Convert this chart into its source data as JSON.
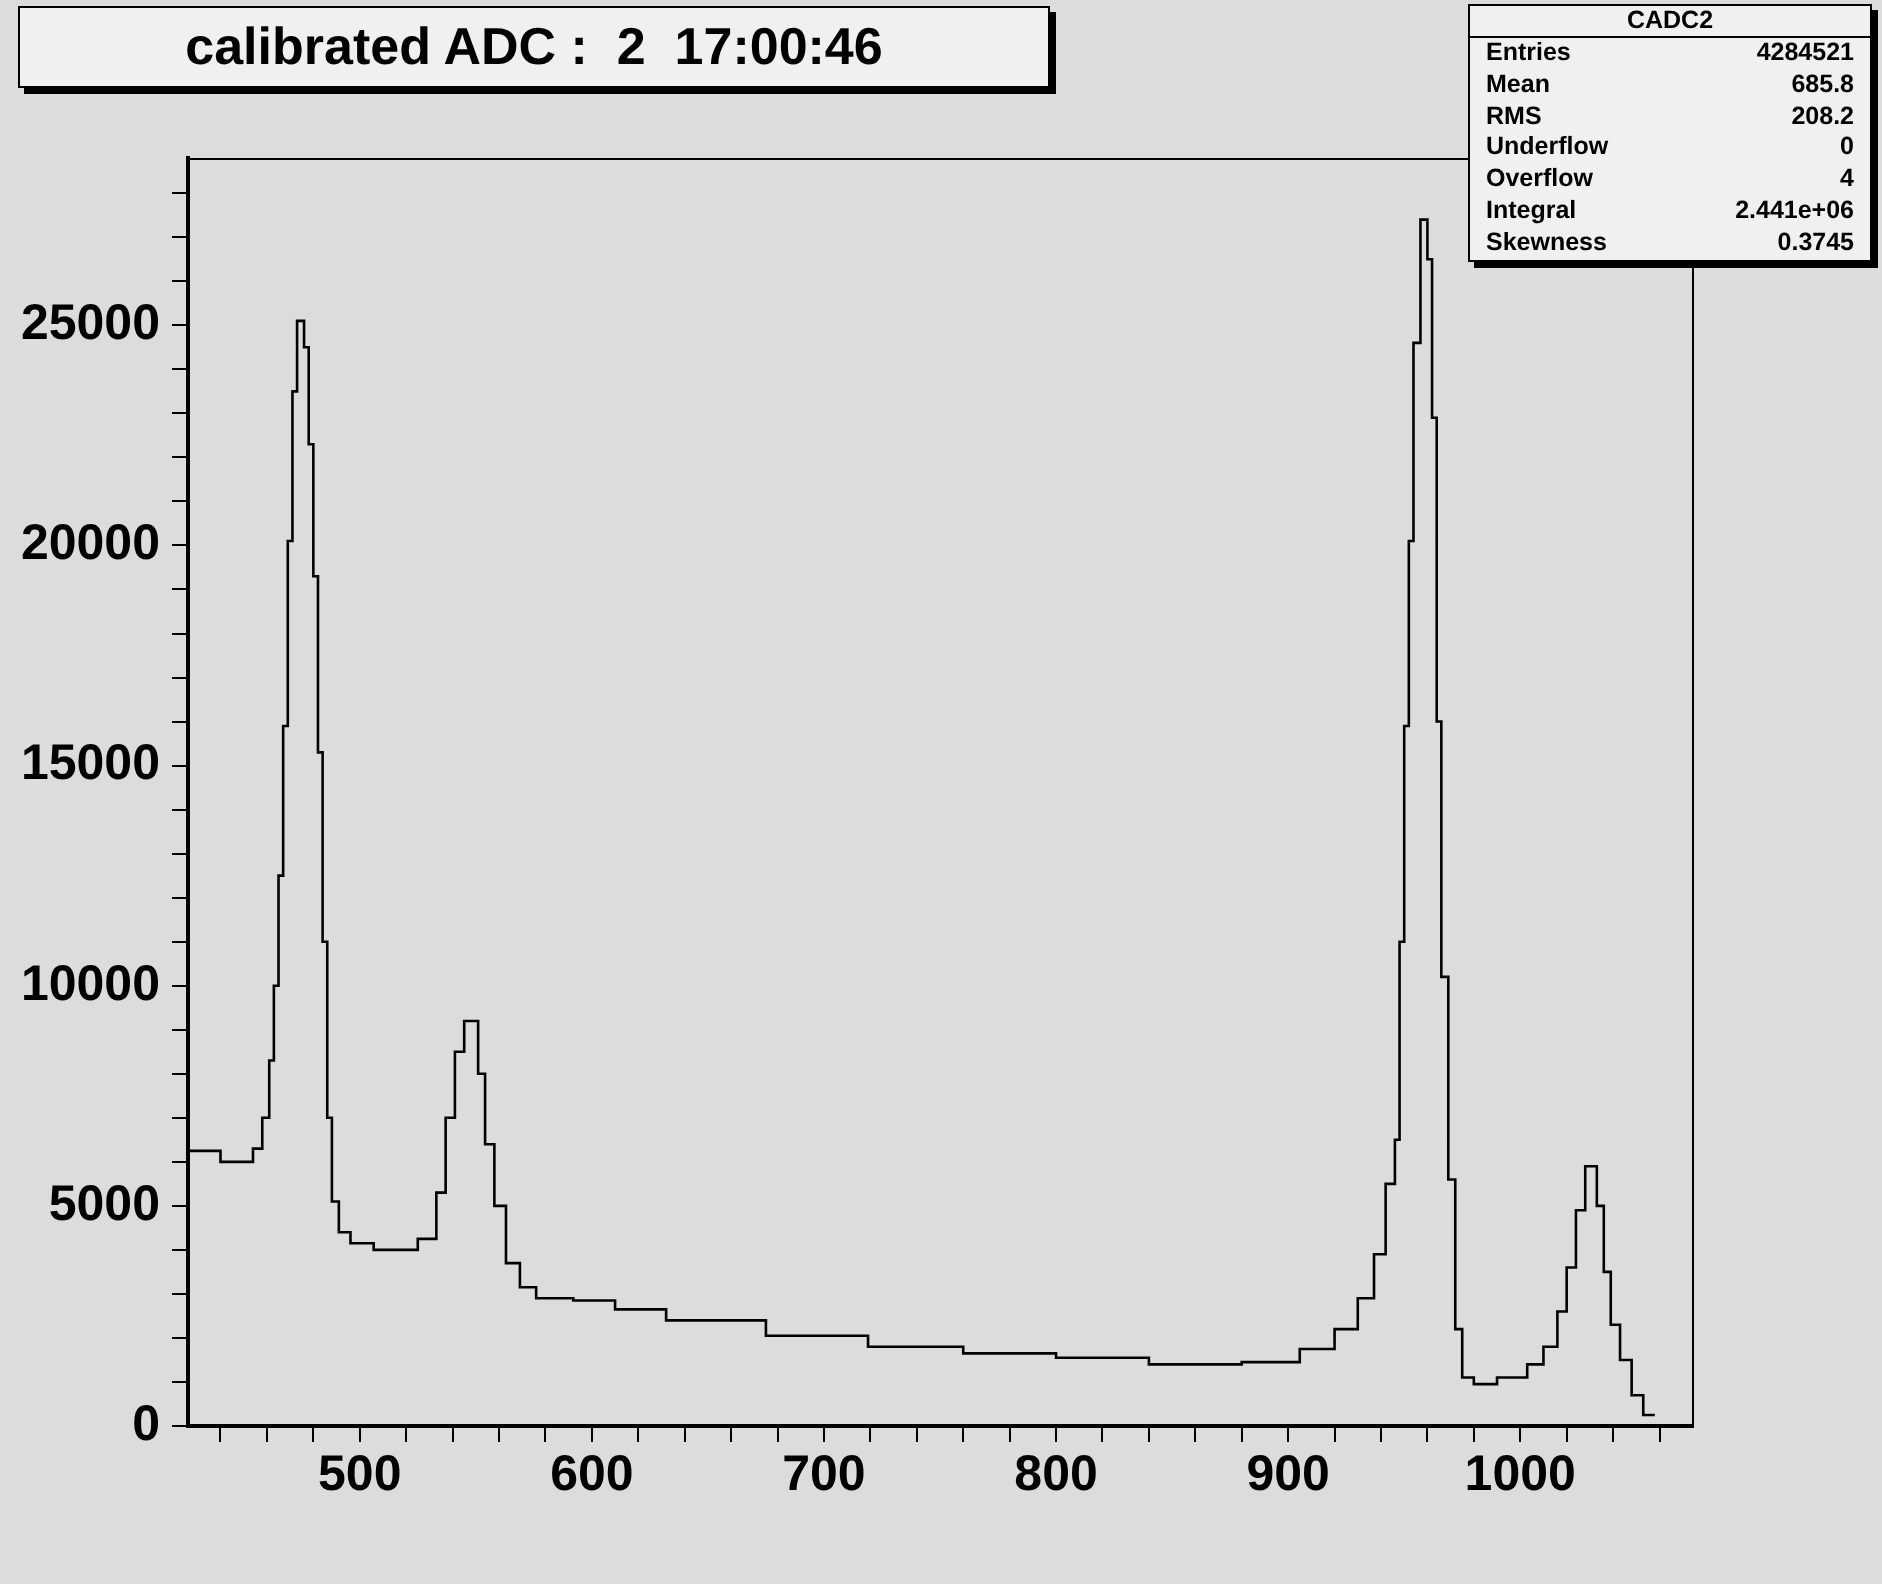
{
  "chart_data": {
    "type": "histogram",
    "title": "calibrated ADC :  2  17:00:46",
    "annotations": [
      "CADC2",
      "Entries",
      "4284521",
      "Mean",
      "685.8",
      "RMS",
      "208.2",
      "Underflow",
      "0",
      "Overflow",
      "4",
      "Integral",
      "2.441e+06",
      "Skewness",
      "0.3745"
    ],
    "bins": [
      426,
      440,
      454,
      458,
      461,
      463,
      465,
      467,
      469,
      471,
      473,
      476,
      478,
      480,
      482,
      484,
      486,
      488,
      491,
      496,
      506,
      525,
      533,
      537,
      541,
      545,
      551,
      554,
      558,
      563,
      569,
      576,
      592,
      610,
      632,
      675,
      719,
      760,
      800,
      840,
      880,
      905,
      920,
      930,
      937,
      942,
      946,
      948,
      950,
      952,
      954,
      957,
      960,
      962,
      964,
      966,
      969,
      972,
      975,
      980,
      990,
      1003,
      1010,
      1016,
      1020,
      1024,
      1028,
      1033,
      1036,
      1039,
      1043,
      1048,
      1053,
      1058
    ],
    "values": [
      6250,
      6000,
      6300,
      7000,
      8300,
      10000,
      12500,
      15900,
      20100,
      23500,
      25100,
      24500,
      22300,
      19300,
      15300,
      11000,
      7000,
      5100,
      4400,
      4150,
      4000,
      4250,
      5300,
      7000,
      8500,
      9200,
      8000,
      6400,
      5000,
      3700,
      3150,
      2900,
      2850,
      2650,
      2400,
      2050,
      1800,
      1650,
      1550,
      1400,
      1450,
      1750,
      2200,
      2900,
      3900,
      5500,
      6500,
      11000,
      15900,
      20100,
      24600,
      27400,
      26500,
      22900,
      16000,
      10200,
      5600,
      2200,
      1100,
      950,
      1100,
      1400,
      1800,
      2600,
      3600,
      4900,
      5900,
      5000,
      3500,
      2300,
      1500,
      700,
      250
    ],
    "color": "#000000",
    "xlim": [
      426,
      1074
    ],
    "xticks": [
      {
        "value": 440,
        "label": null
      },
      {
        "value": 460,
        "label": null
      },
      {
        "value": 480,
        "label": null
      },
      500,
      {
        "value": 520,
        "label": null
      },
      {
        "value": 540,
        "label": null
      },
      {
        "value": 560,
        "label": null
      },
      {
        "value": 580,
        "label": null
      },
      600,
      {
        "value": 620,
        "label": null
      },
      {
        "value": 640,
        "label": null
      },
      {
        "value": 660,
        "label": null
      },
      {
        "value": 680,
        "label": null
      },
      700,
      {
        "value": 720,
        "label": null
      },
      {
        "value": 740,
        "label": null
      },
      {
        "value": 760,
        "label": null
      },
      {
        "value": 780,
        "label": null
      },
      800,
      {
        "value": 820,
        "label": null
      },
      {
        "value": 840,
        "label": null
      },
      {
        "value": 860,
        "label": null
      },
      {
        "value": 880,
        "label": null
      },
      900,
      {
        "value": 920,
        "label": null
      },
      {
        "value": 940,
        "label": null
      },
      {
        "value": 960,
        "label": null
      },
      {
        "value": 980,
        "label": null
      },
      1000,
      {
        "value": 1020,
        "label": null
      },
      {
        "value": 1040,
        "label": null
      },
      {
        "value": 1060,
        "label": null
      }
    ],
    "ylim": [
      0,
      28800
    ],
    "yticks": [
      0,
      {
        "value": 1000,
        "label": null
      },
      {
        "value": 2000,
        "label": null
      },
      {
        "value": 3000,
        "label": null
      },
      {
        "value": 4000,
        "label": null
      },
      5000,
      {
        "value": 6000,
        "label": null
      },
      {
        "value": 7000,
        "label": null
      },
      {
        "value": 8000,
        "label": null
      },
      {
        "value": 9000,
        "label": null
      },
      10000,
      {
        "value": 11000,
        "label": null
      },
      {
        "value": 12000,
        "label": null
      },
      {
        "value": 13000,
        "label": null
      },
      {
        "value": 14000,
        "label": null
      },
      15000,
      {
        "value": 16000,
        "label": null
      },
      {
        "value": 17000,
        "label": null
      },
      {
        "value": 18000,
        "label": null
      },
      {
        "value": 19000,
        "label": null
      },
      20000,
      {
        "value": 21000,
        "label": null
      },
      {
        "value": 22000,
        "label": null
      },
      {
        "value": 23000,
        "label": null
      },
      {
        "value": 24000,
        "label": null
      },
      25000,
      {
        "value": 26000,
        "label": null
      },
      {
        "value": 27000,
        "label": null
      },
      {
        "value": 28000,
        "label": null
      }
    ]
  }
}
